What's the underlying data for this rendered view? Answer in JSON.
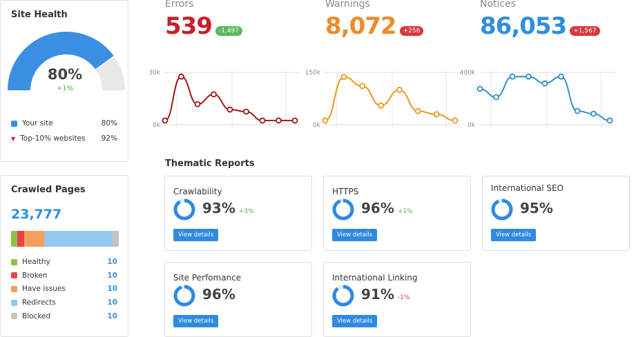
{
  "site_health": {
    "title": "Site Health",
    "value": "80%",
    "change": "+1%",
    "gauge_percent": 80,
    "top_marker_percent": 92,
    "legend": [
      {
        "label": "Your site",
        "value": "80%"
      },
      {
        "label": "Top-10% websites",
        "value": "92%"
      }
    ]
  },
  "metrics": [
    {
      "label": "Errors",
      "value": "539",
      "badge": "-1,497",
      "badge_color": "#5cb85c",
      "color": "#c8202a"
    },
    {
      "label": "Warnings",
      "value": "8,072",
      "badge": "+256",
      "badge_color": "#d9383e",
      "color": "#ef8b2b"
    },
    {
      "label": "Notices",
      "value": "86,053",
      "badge": "+1,567",
      "badge_color": "#d9383e",
      "color": "#2f8ee0"
    }
  ],
  "chart_data": [
    {
      "type": "line",
      "ylim": [
        0,
        30000
      ],
      "yticks": [
        "0k",
        "30k"
      ],
      "color": "#a31515",
      "values": [
        2400,
        27600,
        11800,
        17400,
        8700,
        7500,
        2400,
        2400,
        2400
      ]
    },
    {
      "type": "line",
      "ylim": [
        0,
        150000
      ],
      "yticks": [
        "0k",
        "150k"
      ],
      "color": "#e8961f",
      "values": [
        12000,
        137000,
        111000,
        55000,
        100000,
        39000,
        30000,
        12000
      ]
    },
    {
      "type": "line",
      "ylim": [
        0,
        400000
      ],
      "yticks": [
        "0k",
        "400k"
      ],
      "color": "#2f8ec9",
      "values": [
        274000,
        211000,
        368000,
        368000,
        316000,
        368000,
        105000,
        84000,
        32000
      ]
    }
  ],
  "crawled": {
    "title": "Crawled Pages",
    "value": "23,777",
    "segments": [
      {
        "label": "Healthy",
        "value": "10",
        "color": "#8bc34a",
        "share": 6
      },
      {
        "label": "Broken",
        "value": "10",
        "color": "#e8434a",
        "share": 6
      },
      {
        "label": "Have issues",
        "value": "10",
        "color": "#f5a05a",
        "share": 19
      },
      {
        "label": "Redirects",
        "value": "10",
        "color": "#92c7ef",
        "share": 63
      },
      {
        "label": "Blocked",
        "value": "10",
        "color": "#c4c4c4",
        "share": 6
      }
    ]
  },
  "thematic": {
    "title": "Thematic Reports",
    "button": "View details",
    "reports": [
      {
        "name": "Crawlability",
        "pct": "93%",
        "value": 93,
        "delta": "+3%",
        "delta_color": "#4caf50"
      },
      {
        "name": "HTTPS",
        "pct": "96%",
        "value": 96,
        "delta": "+1%",
        "delta_color": "#4caf50"
      },
      {
        "name": "International SEO",
        "pct": "95%",
        "value": 95,
        "delta": "",
        "delta_color": ""
      },
      {
        "name": "Site Perfomance",
        "pct": "96%",
        "value": 96,
        "delta": "",
        "delta_color": ""
      },
      {
        "name": "International Linking",
        "pct": "91%",
        "value": 91,
        "delta": "-1%",
        "delta_color": "#d9383e"
      }
    ]
  }
}
